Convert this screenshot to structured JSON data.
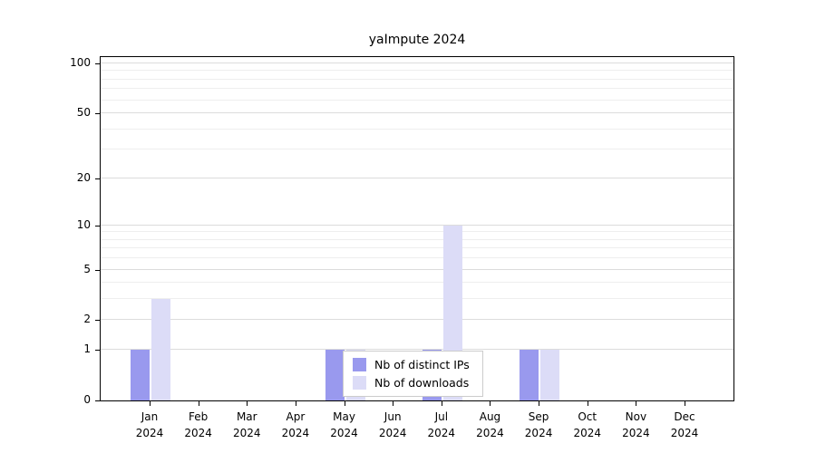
{
  "chart_data": {
    "type": "bar",
    "title": "yaImpute 2024",
    "scale": "log1p",
    "categories": [
      "Jan",
      "Feb",
      "Mar",
      "Apr",
      "May",
      "Jun",
      "Jul",
      "Aug",
      "Sep",
      "Oct",
      "Nov",
      "Dec"
    ],
    "year_label": "2024",
    "series": [
      {
        "name": "Nb of distinct IPs",
        "color": "#9999ee",
        "values": [
          1,
          0,
          0,
          0,
          1,
          0,
          1,
          0,
          1,
          0,
          0,
          0
        ]
      },
      {
        "name": "Nb of downloads",
        "color": "#dcdcf7",
        "values": [
          3,
          0,
          0,
          0,
          1,
          0,
          10,
          0,
          1,
          0,
          0,
          0
        ]
      }
    ],
    "y_ticks": [
      0,
      1,
      2,
      5,
      10,
      20,
      50,
      100
    ],
    "y_minor_ticks": [
      3,
      4,
      6,
      7,
      8,
      9,
      30,
      40,
      60,
      70,
      80,
      90
    ],
    "ylim": [
      0,
      115
    ],
    "grid": "horizontal",
    "legend_position": "inside-bottom-center"
  }
}
